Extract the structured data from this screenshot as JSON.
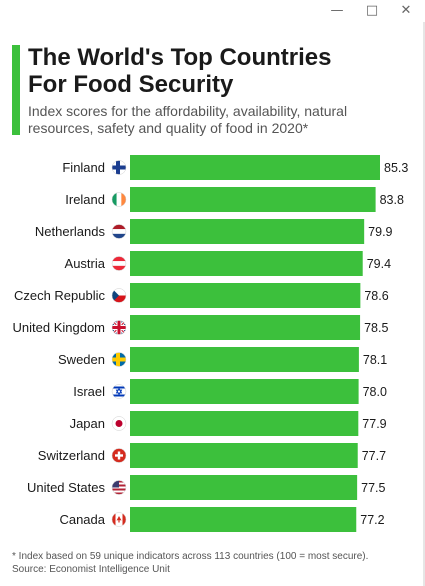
{
  "window": {
    "minimize_icon": "minimize-icon",
    "maximize_icon": "maximize-icon",
    "close_icon": "close-icon"
  },
  "header": {
    "title_line1": "The World's Top Countries",
    "title_line2": "For Food Security",
    "subtitle_line1": "Index scores for the affordability, availability, natural",
    "subtitle_line2": "resources, safety and quality of food in 2020*"
  },
  "chart_data": {
    "type": "bar",
    "orientation": "horizontal",
    "title": "The World's Top Countries For Food Security",
    "subtitle": "Index scores for the affordability, availability, natural resources, safety and quality of food in 2020*",
    "categories": [
      "Finland",
      "Ireland",
      "Netherlands",
      "Austria",
      "Czech Republic",
      "United Kingdom",
      "Sweden",
      "Israel",
      "Japan",
      "Switzerland",
      "United States",
      "Canada"
    ],
    "values": [
      85.3,
      83.8,
      79.9,
      79.4,
      78.6,
      78.5,
      78.1,
      78.0,
      77.9,
      77.7,
      77.5,
      77.2
    ],
    "value_labels": [
      "85.3",
      "83.8",
      "79.9",
      "79.4",
      "78.6",
      "78.5",
      "78.1",
      "78.0",
      "77.9",
      "77.7",
      "77.5",
      "77.2"
    ],
    "flag_icons": [
      "finland-flag-icon",
      "ireland-flag-icon",
      "netherlands-flag-icon",
      "austria-flag-icon",
      "czech-republic-flag-icon",
      "united-kingdom-flag-icon",
      "sweden-flag-icon",
      "israel-flag-icon",
      "japan-flag-icon",
      "switzerland-flag-icon",
      "united-states-flag-icon",
      "canada-flag-icon"
    ],
    "bar_color": "#3cc03c",
    "grid": false,
    "legend": "none"
  },
  "footer": {
    "note": "* Index based on 59 unique indicators across 113 countries (100 = most secure).",
    "source": "Source: Economist Intelligence Unit"
  },
  "colors": {
    "accent": "#3cc03c",
    "bar": "#3cc03c",
    "title_text": "#1a1a1a",
    "subtitle_text": "#555555"
  }
}
